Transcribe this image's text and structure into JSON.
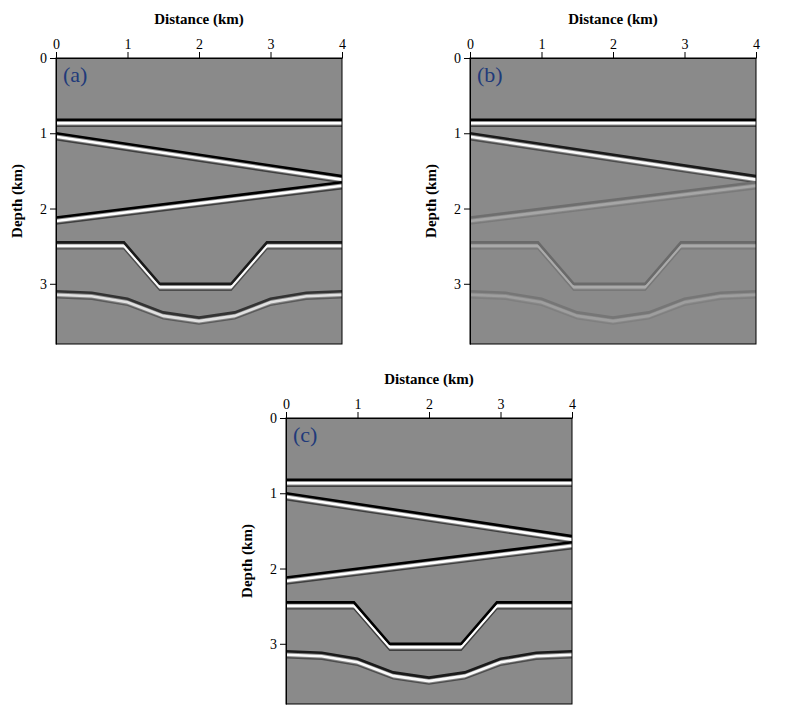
{
  "chart_data": [
    {
      "type": "line",
      "title": "(a)",
      "x_label": "Distance (km)",
      "y_label": "Depth (km)",
      "xlim": [
        0,
        4
      ],
      "ylim": [
        0,
        3.8
      ],
      "xticks": [
        0,
        1,
        2,
        3,
        4
      ],
      "yticks": [
        0,
        1,
        2,
        3
      ],
      "series": [
        {
          "color": "#000000",
          "x": [
            0,
            4
          ],
          "values": [
            0.82,
            0.82
          ]
        },
        {
          "color": "#000000",
          "x": [
            0,
            4
          ],
          "values": [
            1.0,
            1.57
          ]
        },
        {
          "color": "#000000",
          "x": [
            0,
            4
          ],
          "values": [
            2.12,
            1.65
          ]
        },
        {
          "color": "#1a1a1a",
          "x": [
            0,
            0.95,
            1.45,
            2.45,
            2.95,
            4
          ],
          "values": [
            2.45,
            2.45,
            3.0,
            3.0,
            2.45,
            2.45
          ]
        },
        {
          "color": "#333333",
          "x": [
            0,
            0.5,
            1,
            1.5,
            2,
            2.5,
            3,
            3.5,
            4
          ],
          "values": [
            3.1,
            3.12,
            3.2,
            3.38,
            3.45,
            3.38,
            3.2,
            3.12,
            3.1
          ]
        }
      ]
    },
    {
      "type": "line",
      "title": "(b)",
      "x_label": "Distance (km)",
      "y_label": "Depth (km)",
      "xlim": [
        0,
        4
      ],
      "ylim": [
        0,
        3.8
      ],
      "xticks": [
        0,
        1,
        2,
        3,
        4
      ],
      "yticks": [
        0,
        1,
        2,
        3
      ],
      "series": [
        {
          "color": "#000000",
          "x": [
            0,
            4
          ],
          "values": [
            0.82,
            0.82
          ]
        },
        {
          "color": "#1a1a1a",
          "x": [
            0,
            4
          ],
          "values": [
            1.0,
            1.57
          ]
        },
        {
          "color": "#6e6e6e",
          "x": [
            0,
            4
          ],
          "values": [
            2.12,
            1.65
          ]
        },
        {
          "color": "#6a6a6a",
          "x": [
            0,
            0.95,
            1.45,
            2.45,
            2.95,
            4
          ],
          "values": [
            2.45,
            2.45,
            3.0,
            3.0,
            2.45,
            2.45
          ]
        },
        {
          "color": "#767676",
          "x": [
            0,
            0.5,
            1,
            1.5,
            2,
            2.5,
            3,
            3.5,
            4
          ],
          "values": [
            3.1,
            3.12,
            3.2,
            3.38,
            3.45,
            3.38,
            3.2,
            3.12,
            3.1
          ]
        }
      ]
    },
    {
      "type": "line",
      "title": "(c)",
      "x_label": "Distance (km)",
      "y_label": "Depth (km)",
      "xlim": [
        0,
        4
      ],
      "ylim": [
        0,
        3.8
      ],
      "xticks": [
        0,
        1,
        2,
        3,
        4
      ],
      "yticks": [
        0,
        1,
        2,
        3
      ],
      "series": [
        {
          "color": "#000000",
          "x": [
            0,
            4
          ],
          "values": [
            0.82,
            0.82
          ]
        },
        {
          "color": "#000000",
          "x": [
            0,
            4
          ],
          "values": [
            1.0,
            1.57
          ]
        },
        {
          "color": "#000000",
          "x": [
            0,
            4
          ],
          "values": [
            2.12,
            1.65
          ]
        },
        {
          "color": "#000000",
          "x": [
            0,
            0.95,
            1.45,
            2.45,
            2.95,
            4
          ],
          "values": [
            2.45,
            2.45,
            3.0,
            3.0,
            2.45,
            2.45
          ]
        },
        {
          "color": "#1a1a1a",
          "x": [
            0,
            0.5,
            1,
            1.5,
            2,
            2.5,
            3,
            3.5,
            4
          ],
          "values": [
            3.1,
            3.12,
            3.2,
            3.38,
            3.45,
            3.38,
            3.2,
            3.12,
            3.1
          ]
        }
      ]
    }
  ]
}
